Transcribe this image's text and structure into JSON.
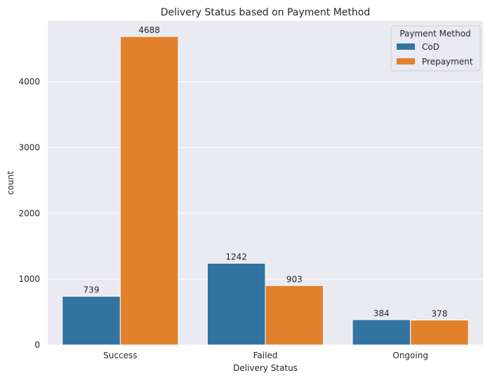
{
  "chart_data": {
    "type": "bar",
    "title": "Delivery Status based on Payment Method",
    "xlabel": "Delivery Status",
    "ylabel": "count",
    "categories": [
      "Success",
      "Failed",
      "Ongoing"
    ],
    "series": [
      {
        "name": "CoD",
        "values": [
          739,
          1242,
          384
        ],
        "color": "#3274a1"
      },
      {
        "name": "Prepayment",
        "values": [
          4688,
          903,
          378
        ],
        "color": "#e1812c"
      }
    ],
    "ylim": [
      0,
      4923
    ],
    "yticks": [
      0,
      1000,
      2000,
      3000,
      4000
    ],
    "grid": true,
    "legend": {
      "title": "Payment Method",
      "placement": "top-right"
    },
    "background": "#eaeaf2"
  }
}
